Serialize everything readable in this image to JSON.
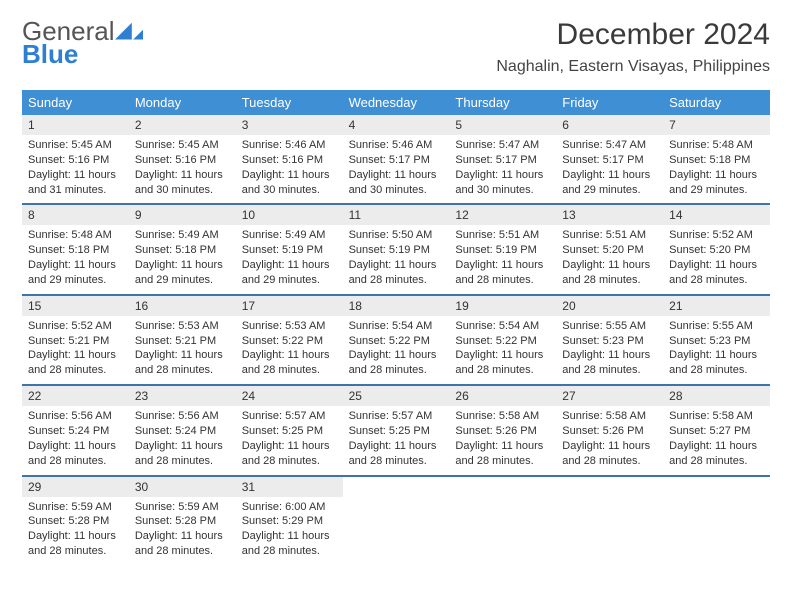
{
  "brand": {
    "line1": "General",
    "line2": "Blue"
  },
  "title": "December 2024",
  "subtitle": "Naghalin, Eastern Visayas, Philippines",
  "colors": {
    "header_bg": "#3f8fd4",
    "week_border": "#3f74a6",
    "daynum_bg": "#ececec"
  },
  "weekdays": [
    "Sunday",
    "Monday",
    "Tuesday",
    "Wednesday",
    "Thursday",
    "Friday",
    "Saturday"
  ],
  "weeks": [
    [
      {
        "n": "1",
        "sr": "5:45 AM",
        "ss": "5:16 PM",
        "dl": "11 hours and 31 minutes."
      },
      {
        "n": "2",
        "sr": "5:45 AM",
        "ss": "5:16 PM",
        "dl": "11 hours and 30 minutes."
      },
      {
        "n": "3",
        "sr": "5:46 AM",
        "ss": "5:16 PM",
        "dl": "11 hours and 30 minutes."
      },
      {
        "n": "4",
        "sr": "5:46 AM",
        "ss": "5:17 PM",
        "dl": "11 hours and 30 minutes."
      },
      {
        "n": "5",
        "sr": "5:47 AM",
        "ss": "5:17 PM",
        "dl": "11 hours and 30 minutes."
      },
      {
        "n": "6",
        "sr": "5:47 AM",
        "ss": "5:17 PM",
        "dl": "11 hours and 29 minutes."
      },
      {
        "n": "7",
        "sr": "5:48 AM",
        "ss": "5:18 PM",
        "dl": "11 hours and 29 minutes."
      }
    ],
    [
      {
        "n": "8",
        "sr": "5:48 AM",
        "ss": "5:18 PM",
        "dl": "11 hours and 29 minutes."
      },
      {
        "n": "9",
        "sr": "5:49 AM",
        "ss": "5:18 PM",
        "dl": "11 hours and 29 minutes."
      },
      {
        "n": "10",
        "sr": "5:49 AM",
        "ss": "5:19 PM",
        "dl": "11 hours and 29 minutes."
      },
      {
        "n": "11",
        "sr": "5:50 AM",
        "ss": "5:19 PM",
        "dl": "11 hours and 28 minutes."
      },
      {
        "n": "12",
        "sr": "5:51 AM",
        "ss": "5:19 PM",
        "dl": "11 hours and 28 minutes."
      },
      {
        "n": "13",
        "sr": "5:51 AM",
        "ss": "5:20 PM",
        "dl": "11 hours and 28 minutes."
      },
      {
        "n": "14",
        "sr": "5:52 AM",
        "ss": "5:20 PM",
        "dl": "11 hours and 28 minutes."
      }
    ],
    [
      {
        "n": "15",
        "sr": "5:52 AM",
        "ss": "5:21 PM",
        "dl": "11 hours and 28 minutes."
      },
      {
        "n": "16",
        "sr": "5:53 AM",
        "ss": "5:21 PM",
        "dl": "11 hours and 28 minutes."
      },
      {
        "n": "17",
        "sr": "5:53 AM",
        "ss": "5:22 PM",
        "dl": "11 hours and 28 minutes."
      },
      {
        "n": "18",
        "sr": "5:54 AM",
        "ss": "5:22 PM",
        "dl": "11 hours and 28 minutes."
      },
      {
        "n": "19",
        "sr": "5:54 AM",
        "ss": "5:22 PM",
        "dl": "11 hours and 28 minutes."
      },
      {
        "n": "20",
        "sr": "5:55 AM",
        "ss": "5:23 PM",
        "dl": "11 hours and 28 minutes."
      },
      {
        "n": "21",
        "sr": "5:55 AM",
        "ss": "5:23 PM",
        "dl": "11 hours and 28 minutes."
      }
    ],
    [
      {
        "n": "22",
        "sr": "5:56 AM",
        "ss": "5:24 PM",
        "dl": "11 hours and 28 minutes."
      },
      {
        "n": "23",
        "sr": "5:56 AM",
        "ss": "5:24 PM",
        "dl": "11 hours and 28 minutes."
      },
      {
        "n": "24",
        "sr": "5:57 AM",
        "ss": "5:25 PM",
        "dl": "11 hours and 28 minutes."
      },
      {
        "n": "25",
        "sr": "5:57 AM",
        "ss": "5:25 PM",
        "dl": "11 hours and 28 minutes."
      },
      {
        "n": "26",
        "sr": "5:58 AM",
        "ss": "5:26 PM",
        "dl": "11 hours and 28 minutes."
      },
      {
        "n": "27",
        "sr": "5:58 AM",
        "ss": "5:26 PM",
        "dl": "11 hours and 28 minutes."
      },
      {
        "n": "28",
        "sr": "5:58 AM",
        "ss": "5:27 PM",
        "dl": "11 hours and 28 minutes."
      }
    ],
    [
      {
        "n": "29",
        "sr": "5:59 AM",
        "ss": "5:28 PM",
        "dl": "11 hours and 28 minutes."
      },
      {
        "n": "30",
        "sr": "5:59 AM",
        "ss": "5:28 PM",
        "dl": "11 hours and 28 minutes."
      },
      {
        "n": "31",
        "sr": "6:00 AM",
        "ss": "5:29 PM",
        "dl": "11 hours and 28 minutes."
      },
      null,
      null,
      null,
      null
    ]
  ],
  "labels": {
    "sunrise": "Sunrise: ",
    "sunset": "Sunset: ",
    "daylight": "Daylight: "
  }
}
